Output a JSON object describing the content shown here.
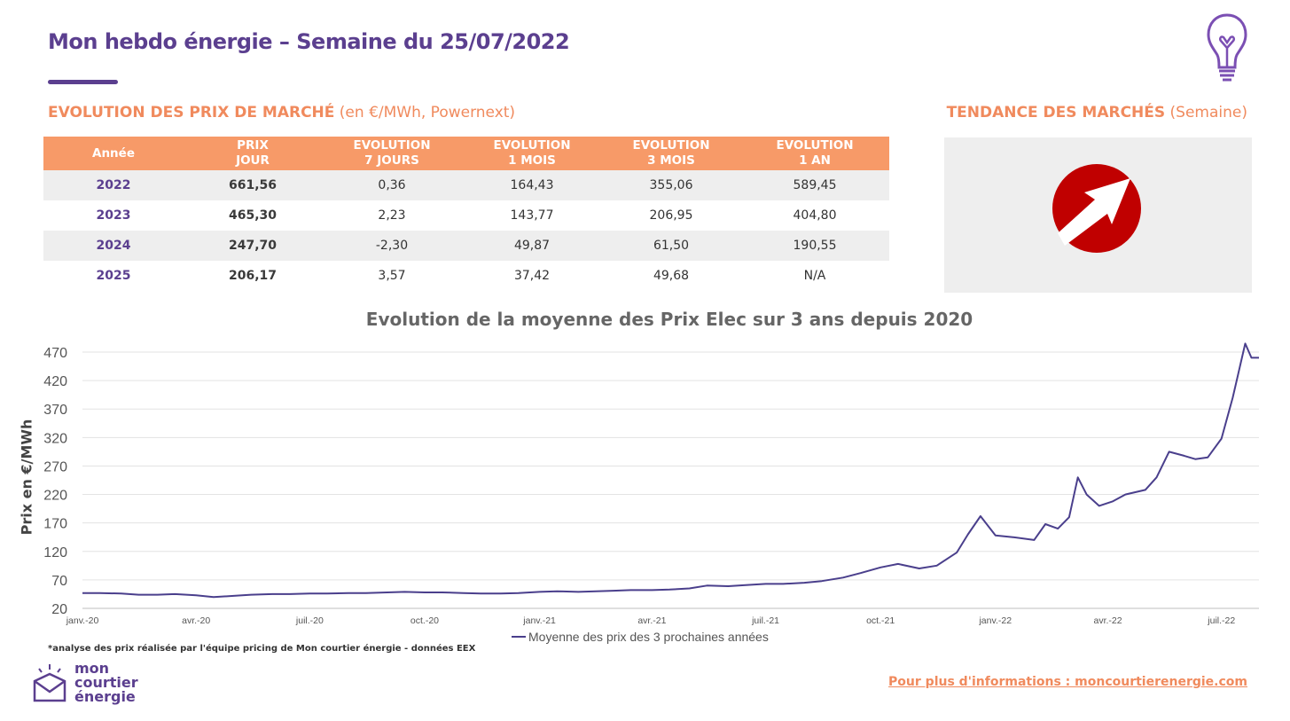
{
  "header": {
    "title": "Mon hebdo énergie – Semaine du 25/07/2022"
  },
  "icons": [
    "lightbulb-icon",
    "trend-up-arrow-icon",
    "logo-icon"
  ],
  "colors": {
    "brand_purple": "#5b3f8f",
    "accent_orange": "#f79a68",
    "trend_red": "#c00000",
    "line": "#4a3f8c"
  },
  "market_prices": {
    "heading": "EVOLUTION DES PRIX DE MARCHÉ",
    "heading_unit": "(en €/MWh, Powernext)",
    "columns": [
      "Année",
      "PRIX\nJOUR",
      "EVOLUTION\n7 JOURS",
      "EVOLUTION\n1 MOIS",
      "EVOLUTION\n3 MOIS",
      "EVOLUTION\n1 AN"
    ],
    "rows": [
      {
        "year": "2022",
        "price": "661,56",
        "evo_7d": "0,36",
        "evo_1m": "164,43",
        "evo_3m": "355,06",
        "evo_1y": "589,45"
      },
      {
        "year": "2023",
        "price": "465,30",
        "evo_7d": "2,23",
        "evo_1m": "143,77",
        "evo_3m": "206,95",
        "evo_1y": "404,80"
      },
      {
        "year": "2024",
        "price": "247,70",
        "evo_7d": "-2,30",
        "evo_1m": "49,87",
        "evo_3m": "61,50",
        "evo_1y": "190,55"
      },
      {
        "year": "2025",
        "price": "206,17",
        "evo_7d": "3,57",
        "evo_1m": "37,42",
        "evo_3m": "49,68",
        "evo_1y": "N/A"
      }
    ]
  },
  "trend": {
    "heading": "TENDANCE DES MARCHÉS",
    "heading_sub": "(Semaine)",
    "direction": "up"
  },
  "chart_data": {
    "type": "line",
    "title": "Evolution de la moyenne des Prix Elec sur 3 ans depuis 2020",
    "xlabel": "",
    "ylabel": "Prix en €/MWh",
    "ylim": [
      20,
      470
    ],
    "yticks": [
      20,
      70,
      120,
      170,
      220,
      270,
      320,
      370,
      420,
      470
    ],
    "grid": true,
    "legend_position": "bottom",
    "x_start": "2020-01-01",
    "x_end": "2022-07-31",
    "xticks": [
      {
        "date": "2020-01-01",
        "label": "janv.-20"
      },
      {
        "date": "2020-04-01",
        "label": "avr.-20"
      },
      {
        "date": "2020-07-01",
        "label": "juil.-20"
      },
      {
        "date": "2020-10-01",
        "label": "oct.-20"
      },
      {
        "date": "2021-01-01",
        "label": "janv.-21"
      },
      {
        "date": "2021-04-01",
        "label": "avr.-21"
      },
      {
        "date": "2021-07-01",
        "label": "juil.-21"
      },
      {
        "date": "2021-10-01",
        "label": "oct.-21"
      },
      {
        "date": "2022-01-01",
        "label": "janv.-22"
      },
      {
        "date": "2022-04-01",
        "label": "avr.-22"
      },
      {
        "date": "2022-07-01",
        "label": "juil.-22"
      }
    ],
    "series": [
      {
        "name": "Moyenne des prix des 3 prochaines années",
        "color": "#4a3f8c",
        "points": [
          [
            "2020-01-01",
            47
          ],
          [
            "2020-01-15",
            47
          ],
          [
            "2020-02-01",
            46
          ],
          [
            "2020-02-15",
            44
          ],
          [
            "2020-03-01",
            44
          ],
          [
            "2020-03-15",
            45
          ],
          [
            "2020-04-01",
            43
          ],
          [
            "2020-04-15",
            40
          ],
          [
            "2020-05-01",
            42
          ],
          [
            "2020-05-15",
            44
          ],
          [
            "2020-06-01",
            45
          ],
          [
            "2020-06-15",
            45
          ],
          [
            "2020-07-01",
            46
          ],
          [
            "2020-07-15",
            46
          ],
          [
            "2020-08-01",
            47
          ],
          [
            "2020-08-15",
            47
          ],
          [
            "2020-09-01",
            48
          ],
          [
            "2020-09-15",
            49
          ],
          [
            "2020-10-01",
            48
          ],
          [
            "2020-10-15",
            48
          ],
          [
            "2020-11-01",
            47
          ],
          [
            "2020-11-15",
            46
          ],
          [
            "2020-12-01",
            46
          ],
          [
            "2020-12-15",
            47
          ],
          [
            "2021-01-01",
            49
          ],
          [
            "2021-01-15",
            50
          ],
          [
            "2021-02-01",
            49
          ],
          [
            "2021-02-15",
            50
          ],
          [
            "2021-03-01",
            51
          ],
          [
            "2021-03-15",
            52
          ],
          [
            "2021-04-01",
            52
          ],
          [
            "2021-04-15",
            53
          ],
          [
            "2021-05-01",
            55
          ],
          [
            "2021-05-15",
            60
          ],
          [
            "2021-06-01",
            59
          ],
          [
            "2021-06-15",
            61
          ],
          [
            "2021-07-01",
            63
          ],
          [
            "2021-07-15",
            63
          ],
          [
            "2021-08-01",
            65
          ],
          [
            "2021-08-15",
            68
          ],
          [
            "2021-09-01",
            74
          ],
          [
            "2021-09-15",
            82
          ],
          [
            "2021-10-01",
            92
          ],
          [
            "2021-10-15",
            98
          ],
          [
            "2021-11-01",
            90
          ],
          [
            "2021-11-15",
            95
          ],
          [
            "2021-12-01",
            118
          ],
          [
            "2021-12-10",
            150
          ],
          [
            "2021-12-20",
            182
          ],
          [
            "2022-01-01",
            148
          ],
          [
            "2022-01-15",
            145
          ],
          [
            "2022-02-01",
            140
          ],
          [
            "2022-02-10",
            168
          ],
          [
            "2022-02-20",
            160
          ],
          [
            "2022-03-01",
            180
          ],
          [
            "2022-03-08",
            250
          ],
          [
            "2022-03-15",
            220
          ],
          [
            "2022-03-25",
            200
          ],
          [
            "2022-04-05",
            208
          ],
          [
            "2022-04-15",
            220
          ],
          [
            "2022-05-01",
            228
          ],
          [
            "2022-05-10",
            250
          ],
          [
            "2022-05-20",
            295
          ],
          [
            "2022-06-01",
            288
          ],
          [
            "2022-06-10",
            282
          ],
          [
            "2022-06-20",
            285
          ],
          [
            "2022-07-01",
            318
          ],
          [
            "2022-07-10",
            390
          ],
          [
            "2022-07-20",
            485
          ],
          [
            "2022-07-25",
            460
          ],
          [
            "2022-07-31",
            460
          ]
        ]
      }
    ]
  },
  "footer": {
    "footnote": "*analyse des prix réalisée par l'équipe pricing de Mon courtier énergie -  données EEX",
    "logo_lines": [
      "mon",
      "courtier",
      "énergie"
    ],
    "more_info": "Pour plus d'informations : moncourtierenergie.com"
  }
}
